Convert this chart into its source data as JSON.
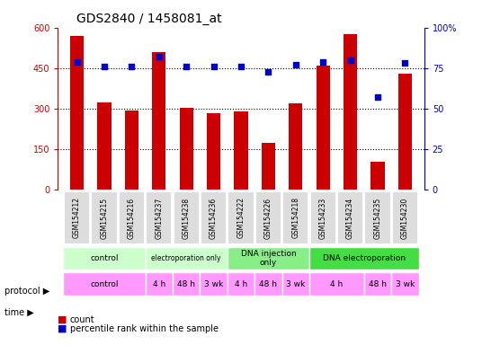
{
  "title": "GDS2840 / 1458081_at",
  "samples": [
    "GSM154212",
    "GSM154215",
    "GSM154216",
    "GSM154237",
    "GSM154238",
    "GSM154236",
    "GSM154222",
    "GSM154226",
    "GSM154218",
    "GSM154233",
    "GSM154234",
    "GSM154235",
    "GSM154230"
  ],
  "counts": [
    570,
    325,
    295,
    510,
    305,
    285,
    290,
    175,
    320,
    460,
    575,
    105,
    430
  ],
  "percentiles": [
    79,
    76,
    76,
    82,
    76,
    76,
    76,
    73,
    77,
    79,
    80,
    57,
    78
  ],
  "ylim_left": [
    0,
    600
  ],
  "ylim_right": [
    0,
    100
  ],
  "yticks_left": [
    0,
    150,
    300,
    450,
    600
  ],
  "yticks_right": [
    0,
    25,
    50,
    75,
    100
  ],
  "bar_color": "#cc0000",
  "dot_color": "#0000cc",
  "protocol_groups": [
    {
      "label": "control",
      "start": 0,
      "end": 3,
      "color": "#ccffcc"
    },
    {
      "label": "electroporation only",
      "start": 3,
      "end": 6,
      "color": "#ccffcc",
      "shade": "light"
    },
    {
      "label": "DNA injection\nonly",
      "start": 6,
      "end": 9,
      "color": "#99ff99"
    },
    {
      "label": "DNA electroporation",
      "start": 9,
      "end": 13,
      "color": "#55ee55"
    }
  ],
  "time_groups": [
    {
      "label": "control",
      "start": 0,
      "end": 3,
      "color": "#ff99ff"
    },
    {
      "label": "4 h",
      "start": 3,
      "end": 4,
      "color": "#ff99ff"
    },
    {
      "label": "48 h",
      "start": 4,
      "end": 5,
      "color": "#ff99ff"
    },
    {
      "label": "3 wk",
      "start": 5,
      "end": 6,
      "color": "#ff99ff"
    },
    {
      "label": "4 h",
      "start": 6,
      "end": 7,
      "color": "#ff99ff"
    },
    {
      "label": "48 h",
      "start": 7,
      "end": 8,
      "color": "#ff99ff"
    },
    {
      "label": "3 wk",
      "start": 8,
      "end": 9,
      "color": "#ff99ff"
    },
    {
      "label": "4 h",
      "start": 9,
      "end": 11,
      "color": "#ff99ff"
    },
    {
      "label": "48 h",
      "start": 11,
      "end": 12,
      "color": "#ff99ff"
    },
    {
      "label": "3 wk",
      "start": 12,
      "end": 13,
      "color": "#ff99ff"
    }
  ],
  "legend_count_color": "#cc0000",
  "legend_dot_color": "#0000cc",
  "xlabel_color": "#000000",
  "left_axis_color": "#cc0000",
  "right_axis_color": "#0000cc",
  "background_color": "#ffffff",
  "tick_label_bg": "#dddddd"
}
